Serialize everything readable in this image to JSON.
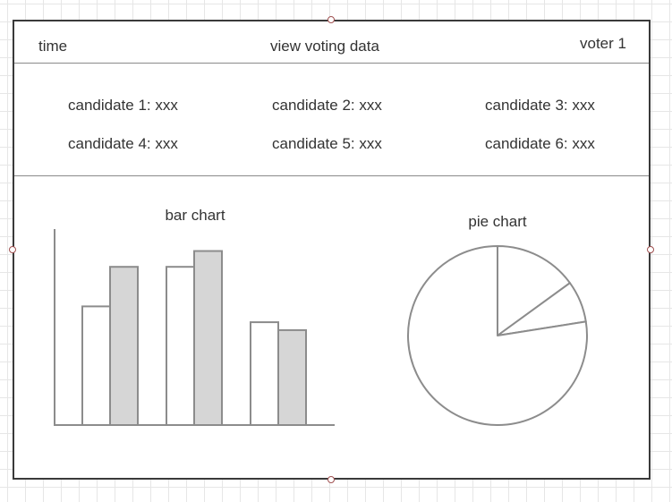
{
  "header": {
    "time_label": "time",
    "title": "view voting data",
    "user_label": "voter 1"
  },
  "candidates": [
    {
      "label": "candidate 1: xxx"
    },
    {
      "label": "candidate 2: xxx"
    },
    {
      "label": "candidate 3: xxx"
    },
    {
      "label": "candidate 4: xxx"
    },
    {
      "label": "candidate 5: xxx"
    },
    {
      "label": "candidate 6: xxx"
    }
  ],
  "chart_data": [
    {
      "type": "bar",
      "title": "bar chart",
      "categories": [
        "",
        "",
        ""
      ],
      "series": [
        {
          "values": [
            60,
            80,
            52
          ],
          "fill": "#ffffff"
        },
        {
          "values": [
            80,
            88,
            48
          ],
          "fill": "#d6d6d6"
        }
      ],
      "ylim": [
        0,
        100
      ],
      "grid": false
    },
    {
      "type": "pie",
      "title": "pie chart",
      "values": [
        60,
        30,
        310
      ],
      "stroke": "#8c8c8c"
    }
  ]
}
